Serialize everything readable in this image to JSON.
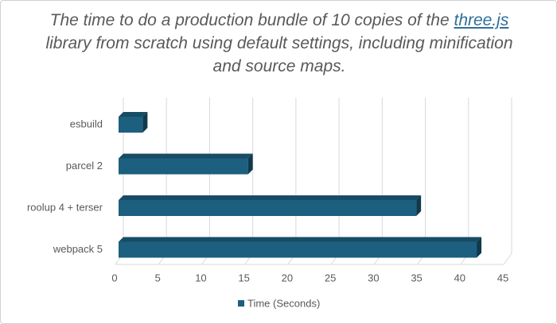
{
  "chart_data": {
    "type": "bar3d",
    "orientation": "horizontal",
    "title": [
      "The time to do a production bundle of 10 copies of the",
      "three.js",
      "library from scratch using default settings, including minification and source maps."
    ],
    "categories": [
      "esbuild",
      "parcel 2",
      "roolup 4 + terser",
      "webpack 5"
    ],
    "series": [
      {
        "name": "Time (Seconds)",
        "color": "#1d5f7f",
        "values": [
          2.8,
          15,
          34.5,
          41.5
        ]
      }
    ],
    "xlim": [
      0,
      45
    ],
    "xticks": [
      0,
      5,
      10,
      15,
      20,
      25,
      30,
      35,
      40,
      45
    ],
    "grid": true,
    "legend": "bottom"
  }
}
